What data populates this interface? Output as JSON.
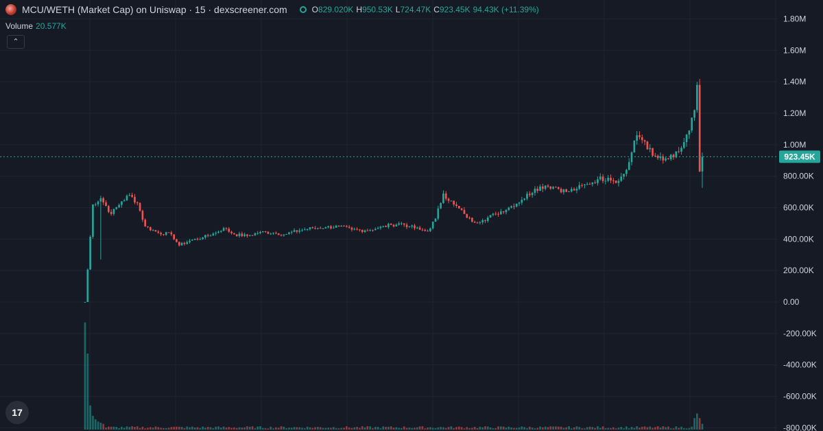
{
  "header": {
    "title": "MCU/WETH (Market Cap) on Uniswap · 15 · dexscreener.com",
    "ohlc": {
      "o_label": "O",
      "o_value": "829.020K",
      "h_label": "H",
      "h_value": "950.53K",
      "l_label": "L",
      "l_value": "724.47K",
      "c_label": "C",
      "c_value": "923.45K",
      "change": "94.43K (+11.39%)"
    }
  },
  "volume": {
    "label": "Volume",
    "value": "20.577K"
  },
  "collapse_symbol": "⌃",
  "tv_logo": "17",
  "colors": {
    "background": "#161a25",
    "up": "#26a69a",
    "down": "#ef5350",
    "grid": "#1f2430",
    "text": "#d1d4dc",
    "price_tag": "#26a69a"
  },
  "chart_data": {
    "type": "candlestick",
    "title": "",
    "y_axis": {
      "ticks": [
        "1.80M",
        "1.60M",
        "1.40M",
        "1.20M",
        "1.00M",
        "800.00K",
        "600.00K",
        "400.00K",
        "200.00K",
        "0.00",
        "-200.00K",
        "-400.00K",
        "-600.00K",
        "-800.00K"
      ],
      "tick_values": [
        1800000,
        1600000,
        1400000,
        1200000,
        1000000,
        800000,
        600000,
        400000,
        200000,
        0,
        -200000,
        -400000,
        -600000,
        -800000
      ],
      "range": [
        -820000,
        1920000
      ],
      "position": "right"
    },
    "last_price": {
      "value": 923450,
      "label": "923.45K"
    },
    "price_anchors": [
      [
        0,
        0
      ],
      [
        3,
        620000
      ],
      [
        6,
        660000
      ],
      [
        10,
        560000
      ],
      [
        14,
        640000
      ],
      [
        17,
        680000
      ],
      [
        20,
        630000
      ],
      [
        23,
        480000
      ],
      [
        28,
        440000
      ],
      [
        33,
        430000
      ],
      [
        36,
        360000
      ],
      [
        40,
        390000
      ],
      [
        45,
        410000
      ],
      [
        50,
        440000
      ],
      [
        53,
        470000
      ],
      [
        57,
        430000
      ],
      [
        62,
        420000
      ],
      [
        67,
        445000
      ],
      [
        72,
        440000
      ],
      [
        76,
        430000
      ],
      [
        82,
        455000
      ],
      [
        87,
        470000
      ],
      [
        92,
        475000
      ],
      [
        97,
        480000
      ],
      [
        102,
        460000
      ],
      [
        107,
        455000
      ],
      [
        112,
        470000
      ],
      [
        117,
        490000
      ],
      [
        121,
        500000
      ],
      [
        124,
        480000
      ],
      [
        128,
        460000
      ],
      [
        131,
        450000
      ],
      [
        134,
        530000
      ],
      [
        137,
        690000
      ],
      [
        141,
        620000
      ],
      [
        145,
        560000
      ],
      [
        148,
        510000
      ],
      [
        152,
        520000
      ],
      [
        157,
        560000
      ],
      [
        162,
        600000
      ],
      [
        167,
        650000
      ],
      [
        172,
        720000
      ],
      [
        176,
        740000
      ],
      [
        180,
        730000
      ],
      [
        184,
        700000
      ],
      [
        188,
        720000
      ],
      [
        192,
        750000
      ],
      [
        196,
        780000
      ],
      [
        200,
        790000
      ],
      [
        204,
        770000
      ],
      [
        207,
        840000
      ],
      [
        211,
        1060000
      ],
      [
        214,
        1020000
      ],
      [
        217,
        930000
      ],
      [
        221,
        900000
      ],
      [
        225,
        920000
      ],
      [
        228,
        980000
      ],
      [
        231,
        1090000
      ],
      [
        233,
        1220000
      ],
      [
        234,
        1380000
      ],
      [
        235,
        830000
      ],
      [
        236,
        923450
      ]
    ],
    "volume": {
      "spikes": [
        [
          0,
          0.93
        ],
        [
          1,
          0.66
        ],
        [
          2,
          0.21
        ],
        [
          3,
          0.12
        ],
        [
          4,
          0.09
        ],
        [
          5,
          0.07
        ],
        [
          6,
          0.06
        ],
        [
          7,
          0.05
        ],
        [
          233,
          0.1
        ],
        [
          234,
          0.14
        ],
        [
          235,
          0.1
        ],
        [
          236,
          0.05
        ]
      ],
      "baseline_fraction": 0.02
    },
    "candles_count": 237
  }
}
